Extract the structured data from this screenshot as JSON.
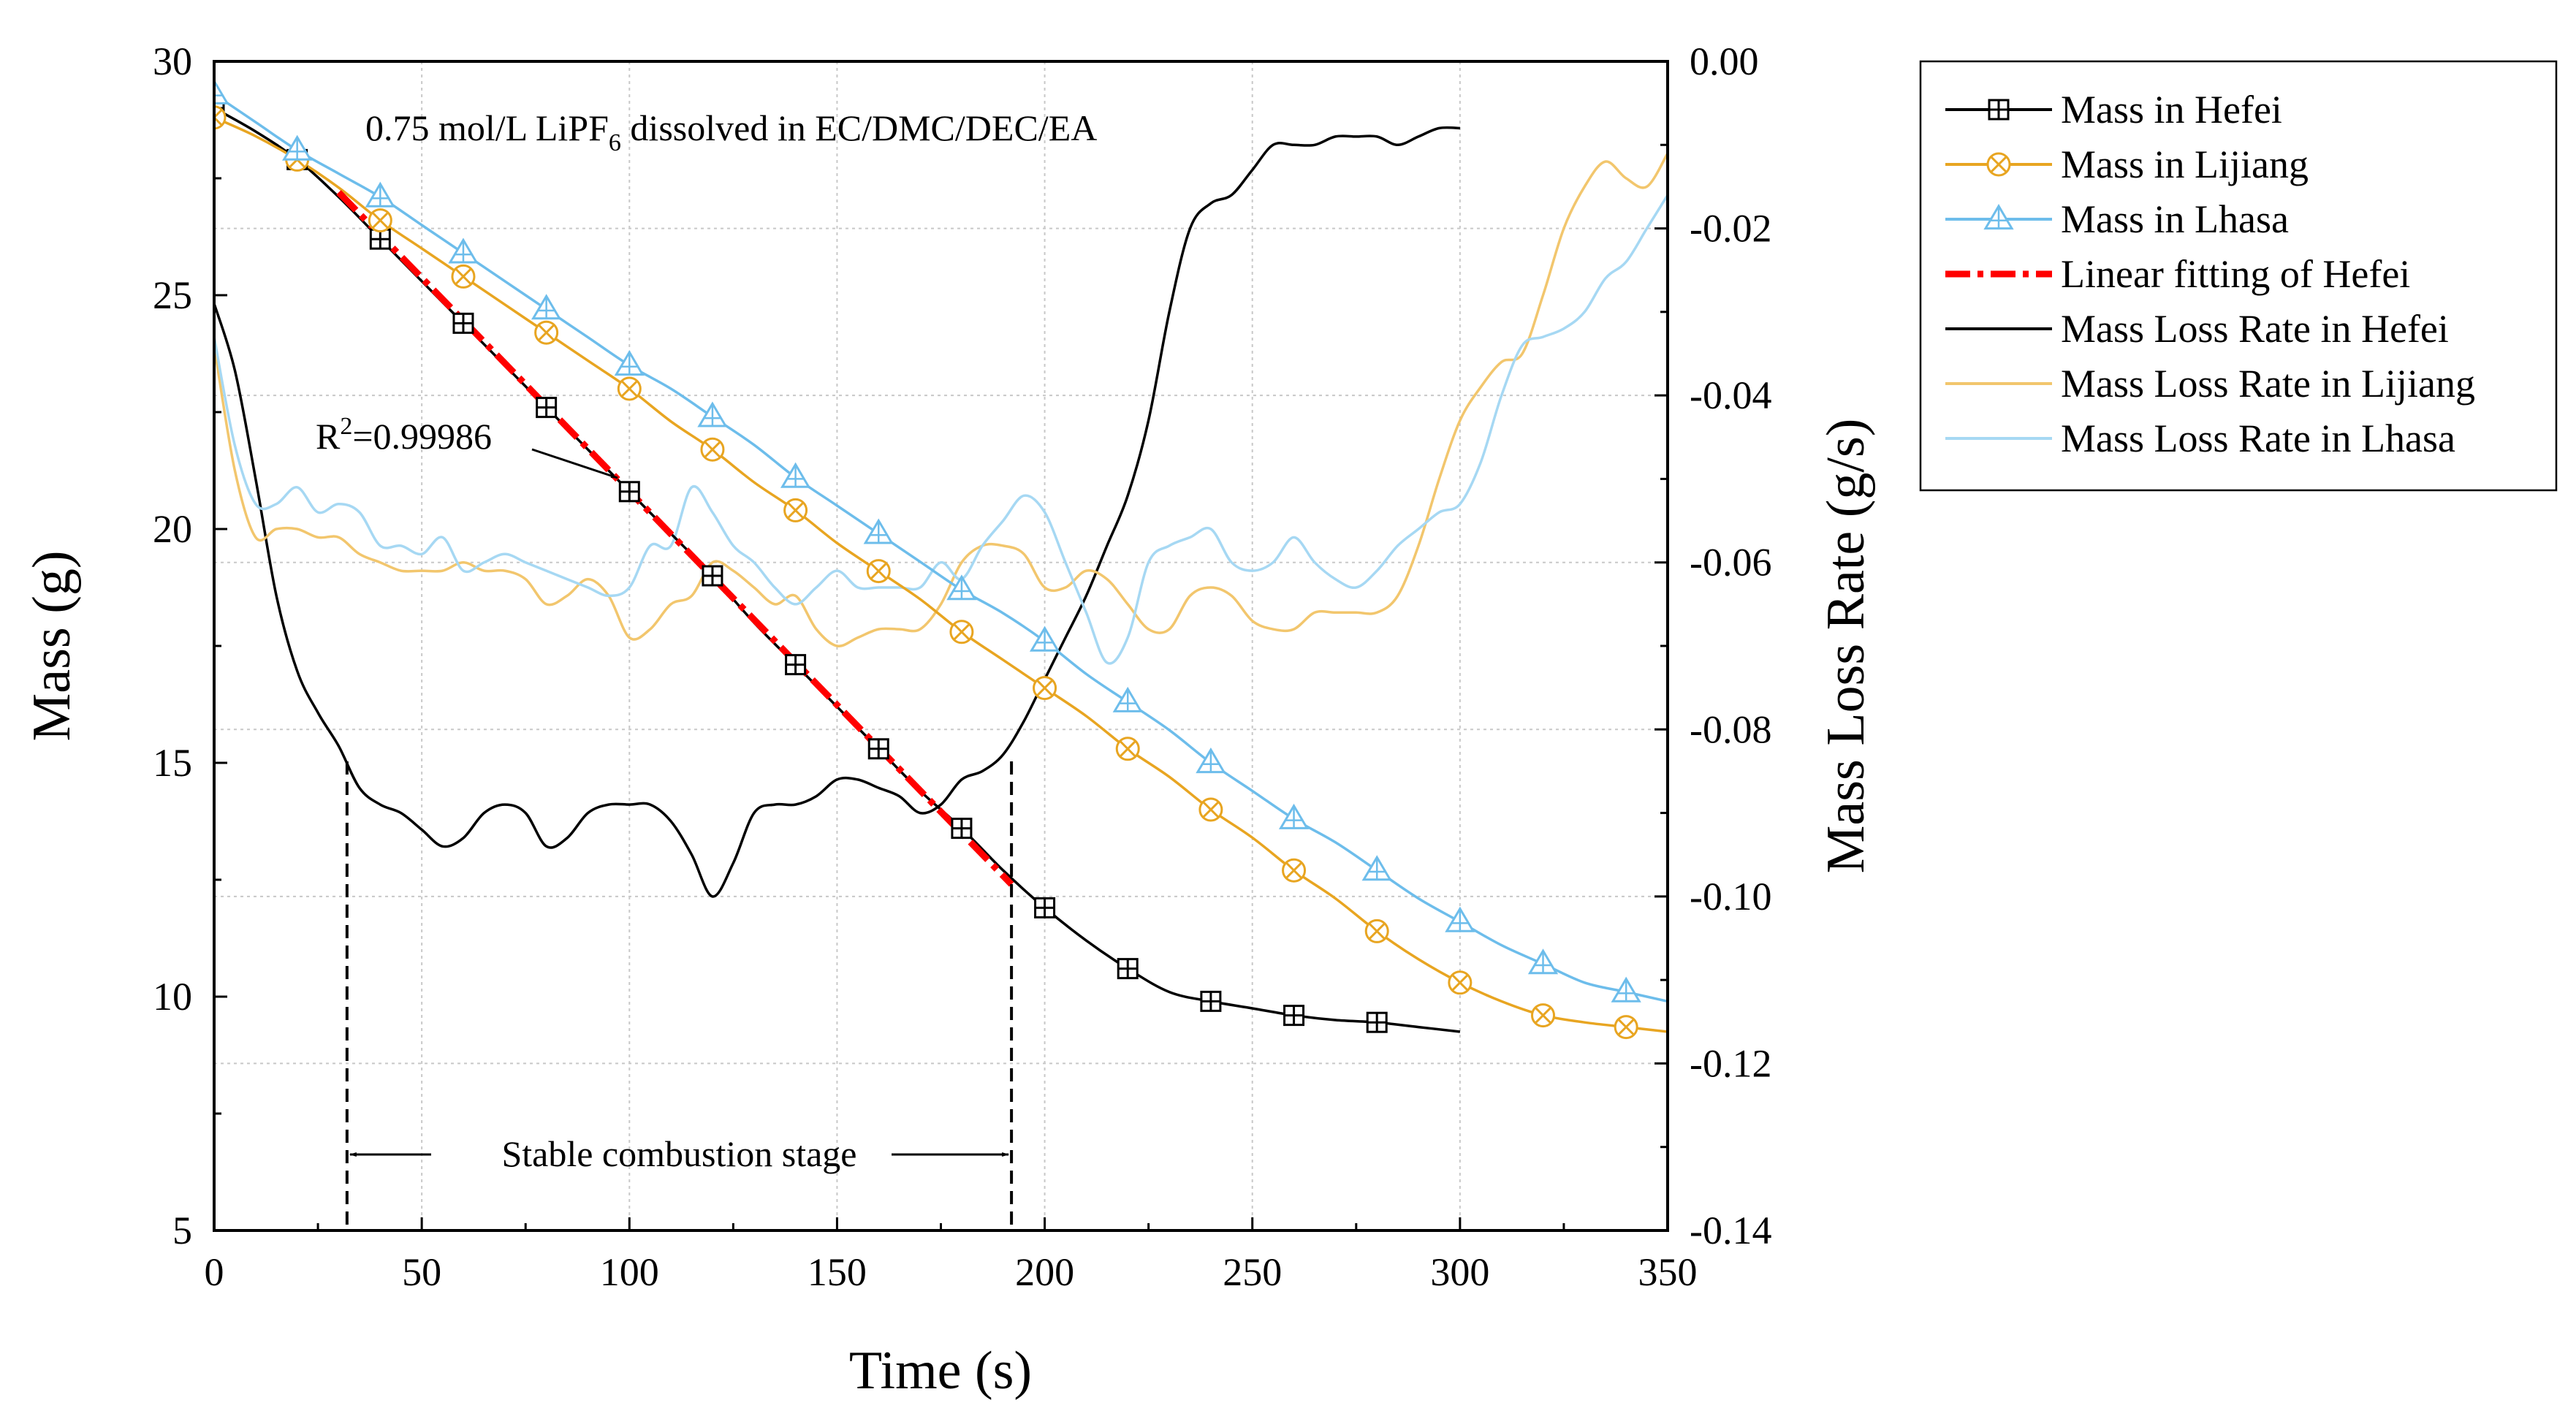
{
  "chart_data": {
    "type": "line",
    "xlabel": "Time (s)",
    "ylabel_left": "Mass (g)",
    "ylabel_right": "Mass Loss Rate (g/s)",
    "xlim": [
      0,
      350
    ],
    "ylim_left": [
      5,
      30
    ],
    "ylim_right": [
      -0.14,
      0.0
    ],
    "x_ticks": [
      "0",
      "50",
      "100",
      "150",
      "200",
      "250",
      "300",
      "350"
    ],
    "x_tick_values": [
      0,
      50,
      100,
      150,
      200,
      250,
      300,
      350
    ],
    "y_left_ticks": [
      "5",
      "10",
      "15",
      "20",
      "25",
      "30"
    ],
    "y_left_tick_values": [
      5,
      10,
      15,
      20,
      25,
      30
    ],
    "y_right_ticks": [
      "-0.14",
      "-0.12",
      "-0.10",
      "-0.08",
      "-0.06",
      "-0.04",
      "-0.02",
      "0.00"
    ],
    "y_right_tick_values": [
      -0.14,
      -0.12,
      -0.1,
      -0.08,
      -0.06,
      -0.04,
      -0.02,
      0.0
    ],
    "grid": true,
    "legend_position": "outside-right",
    "annotations": {
      "electrolyte": {
        "prefix": "0.75 mol/L LiPF",
        "subscript": "6",
        "suffix": " dissolved in EC/DMC/DEC/EA"
      },
      "r_squared": {
        "base": "R",
        "superscript": "2",
        "rest": "=0.99986"
      },
      "stage": {
        "label": "Stable combustion stage",
        "x_start": 32,
        "x_end": 192
      }
    },
    "series": [
      {
        "name": "Mass in Hefei",
        "axis": "left",
        "color": "#000000",
        "marker": "square-cross",
        "x": [
          0,
          10,
          20,
          30,
          40,
          50,
          60,
          70,
          80,
          90,
          100,
          110,
          120,
          130,
          140,
          150,
          160,
          170,
          180,
          190,
          200,
          210,
          220,
          230,
          240,
          250,
          260,
          270,
          280,
          290,
          300
        ],
        "y": [
          29.0,
          28.5,
          27.9,
          27.1,
          26.2,
          25.3,
          24.4,
          23.5,
          22.6,
          21.7,
          20.8,
          19.9,
          19.0,
          18.0,
          17.1,
          16.2,
          15.3,
          14.4,
          13.6,
          12.7,
          11.9,
          11.2,
          10.6,
          10.1,
          9.9,
          9.75,
          9.6,
          9.5,
          9.45,
          9.35,
          9.25
        ],
        "marker_x": [
          0,
          20,
          40,
          60,
          80,
          100,
          120,
          140,
          160,
          180,
          200,
          220,
          240,
          260,
          280
        ]
      },
      {
        "name": "Mass in Lijiang",
        "axis": "left",
        "color": "#E8A521",
        "marker": "circle-cross",
        "x": [
          0,
          10,
          20,
          30,
          40,
          50,
          60,
          70,
          80,
          90,
          100,
          110,
          120,
          130,
          140,
          150,
          160,
          170,
          180,
          190,
          200,
          210,
          220,
          230,
          240,
          250,
          260,
          270,
          280,
          290,
          300,
          310,
          320,
          330,
          340,
          350
        ],
        "y": [
          28.8,
          28.4,
          27.9,
          27.3,
          26.6,
          26.0,
          25.4,
          24.8,
          24.2,
          23.6,
          23.0,
          22.3,
          21.7,
          21.0,
          20.4,
          19.7,
          19.1,
          18.5,
          17.8,
          17.2,
          16.6,
          16.0,
          15.3,
          14.7,
          14.0,
          13.4,
          12.7,
          12.1,
          11.4,
          10.8,
          10.3,
          9.9,
          9.6,
          9.45,
          9.35,
          9.25
        ],
        "marker_x": [
          0,
          20,
          40,
          60,
          80,
          100,
          120,
          140,
          160,
          180,
          200,
          220,
          240,
          260,
          280,
          300,
          320,
          340
        ]
      },
      {
        "name": "Mass in Lhasa",
        "axis": "left",
        "color": "#6DBDEB",
        "marker": "triangle",
        "x": [
          0,
          10,
          20,
          30,
          40,
          50,
          60,
          70,
          80,
          90,
          100,
          110,
          120,
          130,
          140,
          150,
          160,
          170,
          180,
          190,
          200,
          210,
          220,
          230,
          240,
          250,
          260,
          270,
          280,
          290,
          300,
          310,
          320,
          330,
          340,
          350
        ],
        "y": [
          29.3,
          28.7,
          28.1,
          27.6,
          27.1,
          26.5,
          25.9,
          25.3,
          24.7,
          24.1,
          23.5,
          23.0,
          22.4,
          21.8,
          21.1,
          20.5,
          19.9,
          19.3,
          18.7,
          18.2,
          17.6,
          16.9,
          16.3,
          15.7,
          15.0,
          14.4,
          13.8,
          13.3,
          12.7,
          12.1,
          11.6,
          11.1,
          10.7,
          10.3,
          10.1,
          9.9
        ],
        "marker_x": [
          0,
          20,
          40,
          60,
          80,
          100,
          120,
          140,
          160,
          180,
          200,
          220,
          240,
          260,
          280,
          300,
          320,
          340
        ]
      },
      {
        "name": "Linear fitting of Hefei",
        "axis": "left",
        "color": "#FF0000",
        "style": "dash-dot",
        "x": [
          30,
          192
        ],
        "y": [
          27.2,
          12.4
        ]
      },
      {
        "name": "Mass Loss Rate in Hefei",
        "axis": "right",
        "color": "#000000",
        "x": [
          0,
          5,
          10,
          15,
          20,
          25,
          30,
          35,
          40,
          45,
          50,
          55,
          60,
          65,
          70,
          75,
          80,
          85,
          90,
          95,
          100,
          105,
          110,
          115,
          120,
          125,
          130,
          135,
          140,
          145,
          150,
          155,
          160,
          165,
          170,
          175,
          180,
          185,
          190,
          195,
          200,
          205,
          210,
          215,
          220,
          225,
          230,
          235,
          240,
          245,
          250,
          255,
          260,
          265,
          270,
          275,
          280,
          285,
          290,
          295,
          300
        ],
        "y": [
          -0.029,
          -0.037,
          -0.05,
          -0.064,
          -0.073,
          -0.078,
          -0.082,
          -0.087,
          -0.089,
          -0.09,
          -0.092,
          -0.094,
          -0.093,
          -0.09,
          -0.089,
          -0.09,
          -0.094,
          -0.093,
          -0.09,
          -0.089,
          -0.089,
          -0.089,
          -0.091,
          -0.095,
          -0.1,
          -0.096,
          -0.09,
          -0.089,
          -0.089,
          -0.088,
          -0.086,
          -0.086,
          -0.087,
          -0.088,
          -0.09,
          -0.089,
          -0.086,
          -0.085,
          -0.083,
          -0.079,
          -0.074,
          -0.069,
          -0.064,
          -0.058,
          -0.052,
          -0.043,
          -0.03,
          -0.02,
          -0.017,
          -0.016,
          -0.013,
          -0.01,
          -0.01,
          -0.01,
          -0.009,
          -0.009,
          -0.009,
          -0.01,
          -0.009,
          -0.008,
          -0.008
        ]
      },
      {
        "name": "Mass Loss Rate in Lijiang",
        "axis": "right",
        "color": "#F2C66D",
        "x": [
          0,
          5,
          10,
          15,
          20,
          25,
          30,
          35,
          40,
          45,
          50,
          55,
          60,
          65,
          70,
          75,
          80,
          85,
          90,
          95,
          100,
          105,
          110,
          115,
          120,
          125,
          130,
          135,
          140,
          145,
          150,
          155,
          160,
          165,
          170,
          175,
          180,
          185,
          190,
          195,
          200,
          205,
          210,
          215,
          220,
          225,
          230,
          235,
          240,
          245,
          250,
          255,
          260,
          265,
          270,
          275,
          280,
          285,
          290,
          295,
          300,
          305,
          310,
          315,
          320,
          325,
          330,
          335,
          340,
          345,
          350
        ],
        "y": [
          -0.034,
          -0.049,
          -0.057,
          -0.056,
          -0.056,
          -0.057,
          -0.057,
          -0.059,
          -0.06,
          -0.061,
          -0.061,
          -0.061,
          -0.06,
          -0.061,
          -0.061,
          -0.062,
          -0.065,
          -0.064,
          -0.062,
          -0.064,
          -0.069,
          -0.068,
          -0.065,
          -0.064,
          -0.06,
          -0.061,
          -0.063,
          -0.065,
          -0.064,
          -0.068,
          -0.07,
          -0.069,
          -0.068,
          -0.068,
          -0.068,
          -0.065,
          -0.06,
          -0.058,
          -0.058,
          -0.059,
          -0.063,
          -0.063,
          -0.061,
          -0.062,
          -0.065,
          -0.068,
          -0.068,
          -0.064,
          -0.063,
          -0.064,
          -0.067,
          -0.068,
          -0.068,
          -0.066,
          -0.066,
          -0.066,
          -0.066,
          -0.064,
          -0.058,
          -0.05,
          -0.043,
          -0.039,
          -0.036,
          -0.035,
          -0.028,
          -0.02,
          -0.015,
          -0.012,
          -0.014,
          -0.015,
          -0.011
        ]
      },
      {
        "name": "Mass Loss Rate in Lhasa",
        "axis": "right",
        "color": "#A6D8F3",
        "x": [
          0,
          5,
          10,
          15,
          20,
          25,
          30,
          35,
          40,
          45,
          50,
          55,
          60,
          65,
          70,
          75,
          80,
          85,
          90,
          95,
          100,
          105,
          110,
          115,
          120,
          125,
          130,
          135,
          140,
          145,
          150,
          155,
          160,
          165,
          170,
          175,
          180,
          185,
          190,
          195,
          200,
          205,
          210,
          215,
          220,
          225,
          230,
          235,
          240,
          245,
          250,
          255,
          260,
          265,
          270,
          275,
          280,
          285,
          290,
          295,
          300,
          305,
          310,
          315,
          320,
          325,
          330,
          335,
          340,
          345,
          350
        ],
        "y": [
          -0.033,
          -0.046,
          -0.053,
          -0.053,
          -0.051,
          -0.054,
          -0.053,
          -0.054,
          -0.058,
          -0.058,
          -0.059,
          -0.057,
          -0.061,
          -0.06,
          -0.059,
          -0.06,
          -0.061,
          -0.062,
          -0.063,
          -0.064,
          -0.063,
          -0.058,
          -0.058,
          -0.051,
          -0.054,
          -0.058,
          -0.06,
          -0.063,
          -0.065,
          -0.063,
          -0.061,
          -0.063,
          -0.063,
          -0.063,
          -0.063,
          -0.06,
          -0.062,
          -0.058,
          -0.055,
          -0.052,
          -0.054,
          -0.06,
          -0.066,
          -0.072,
          -0.069,
          -0.06,
          -0.058,
          -0.057,
          -0.056,
          -0.06,
          -0.061,
          -0.06,
          -0.057,
          -0.06,
          -0.062,
          -0.063,
          -0.061,
          -0.058,
          -0.056,
          -0.054,
          -0.053,
          -0.048,
          -0.04,
          -0.034,
          -0.033,
          -0.032,
          -0.03,
          -0.026,
          -0.024,
          -0.02,
          -0.016
        ]
      }
    ]
  }
}
